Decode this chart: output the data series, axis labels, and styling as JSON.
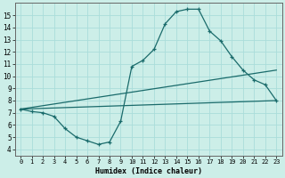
{
  "xlabel": "Humidex (Indice chaleur)",
  "background_color": "#cceee8",
  "grid_color": "#aaddda",
  "line_color": "#1a6b6b",
  "xlim": [
    -0.5,
    23.5
  ],
  "ylim": [
    3.5,
    16
  ],
  "xticks": [
    0,
    1,
    2,
    3,
    4,
    5,
    6,
    7,
    8,
    9,
    10,
    11,
    12,
    13,
    14,
    15,
    16,
    17,
    18,
    19,
    20,
    21,
    22,
    23
  ],
  "yticks": [
    4,
    5,
    6,
    7,
    8,
    9,
    10,
    11,
    12,
    13,
    14,
    15
  ],
  "line1_x": [
    0,
    1,
    2,
    3,
    4,
    5,
    6,
    7,
    8,
    9,
    10,
    11,
    12,
    13,
    14,
    15,
    16,
    17,
    18,
    19,
    20,
    21,
    22,
    23
  ],
  "line1_y": [
    7.3,
    7.1,
    7.0,
    6.7,
    5.7,
    5.0,
    4.7,
    4.4,
    4.6,
    6.3,
    10.8,
    11.3,
    12.2,
    14.3,
    15.3,
    15.5,
    15.5,
    13.7,
    12.9,
    11.6,
    10.5,
    9.7,
    9.3,
    8.0
  ],
  "line2_x": [
    0,
    23
  ],
  "line2_y": [
    7.3,
    10.5
  ],
  "line3_x": [
    0,
    23
  ],
  "line3_y": [
    7.3,
    8.0
  ]
}
